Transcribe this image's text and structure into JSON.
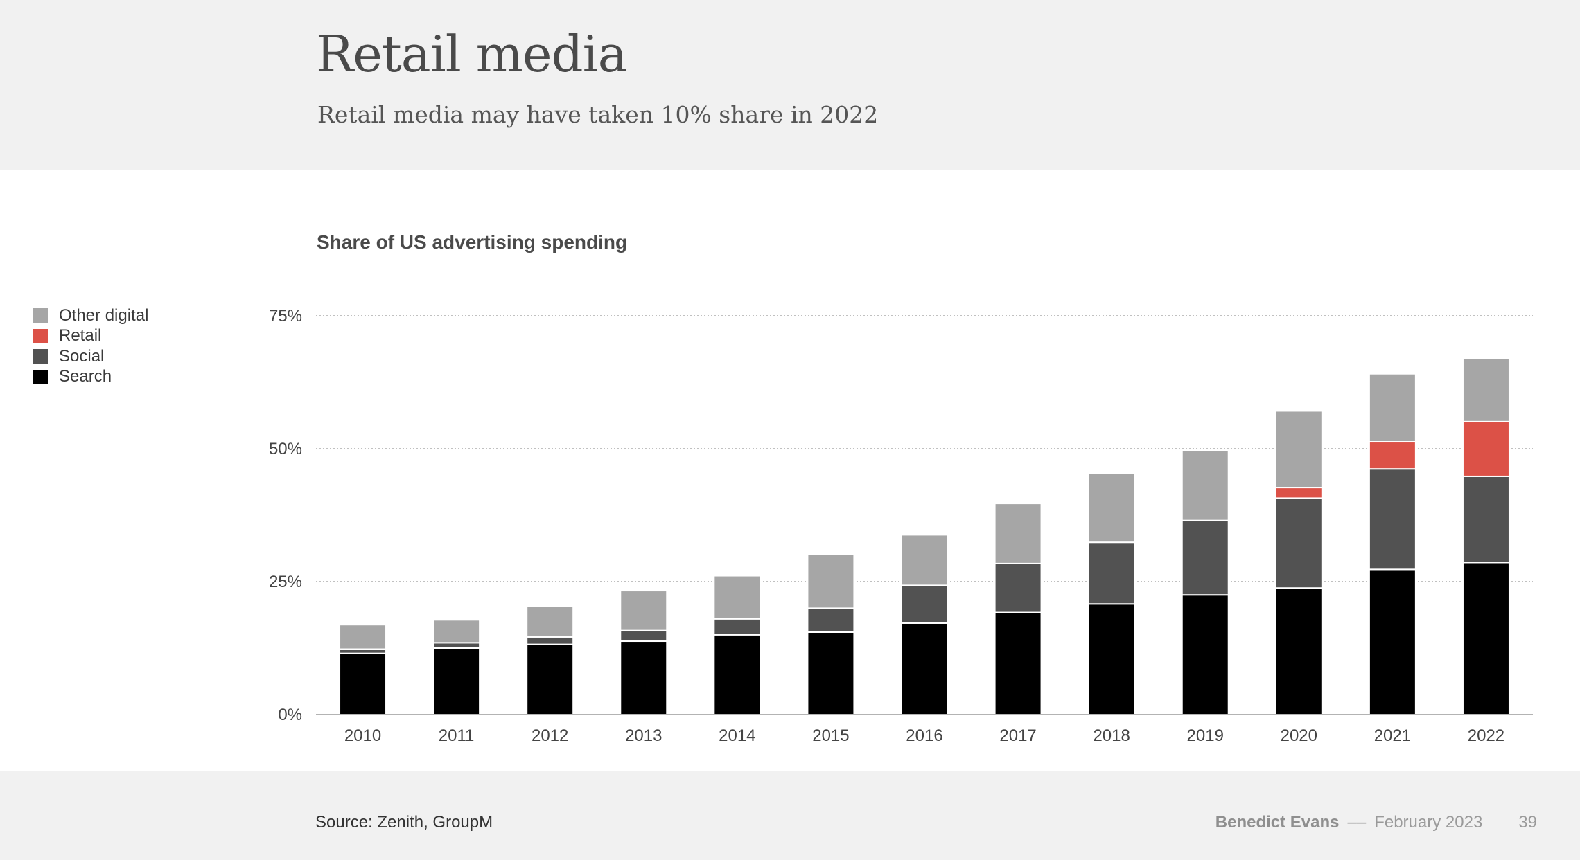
{
  "header": {
    "title": "Retail media",
    "subtitle": "Retail media may have taken 10% share in 2022"
  },
  "footer": {
    "source": "Source: Zenith, GroupM",
    "author": "Benedict Evans",
    "separator": "––",
    "date": "February 2023",
    "page": "39"
  },
  "colors": {
    "Other digital": "#a6a6a6",
    "Retail": "#dc5147",
    "Social": "#525252",
    "Search": "#000000"
  },
  "legend": [
    {
      "label": "Other digital",
      "color": "#a6a6a6"
    },
    {
      "label": "Retail",
      "color": "#dc5147"
    },
    {
      "label": "Social",
      "color": "#525252"
    },
    {
      "label": "Search",
      "color": "#000000"
    }
  ],
  "chart_data": {
    "type": "bar",
    "stacked": true,
    "title": "Share of US advertising spending",
    "xlabel": "",
    "ylabel": "",
    "ylim": [
      0,
      75
    ],
    "yticks": [
      0,
      25,
      50,
      75
    ],
    "ytick_labels": [
      "0%",
      "25%",
      "50%",
      "75%"
    ],
    "grid": true,
    "legend_position": "left",
    "categories": [
      "2010",
      "2011",
      "2012",
      "2013",
      "2014",
      "2015",
      "2016",
      "2017",
      "2018",
      "2019",
      "2020",
      "2021",
      "2022"
    ],
    "series": [
      {
        "name": "Search",
        "values": [
          11.5,
          12.5,
          13.2,
          13.8,
          15.0,
          15.5,
          17.2,
          19.2,
          20.8,
          22.5,
          23.8,
          27.3,
          28.6
        ]
      },
      {
        "name": "Social",
        "values": [
          0.8,
          1.0,
          1.4,
          2.0,
          3.0,
          4.5,
          7.1,
          9.2,
          11.6,
          14.0,
          16.9,
          18.9,
          16.2
        ]
      },
      {
        "name": "Retail",
        "values": [
          0,
          0,
          0,
          0,
          0,
          0,
          0,
          0,
          0,
          0,
          2.0,
          5.1,
          10.3
        ]
      },
      {
        "name": "Other digital",
        "values": [
          4.6,
          4.3,
          5.8,
          7.5,
          8.1,
          10.2,
          9.5,
          11.3,
          13.0,
          13.2,
          14.4,
          12.8,
          11.9
        ]
      }
    ]
  }
}
